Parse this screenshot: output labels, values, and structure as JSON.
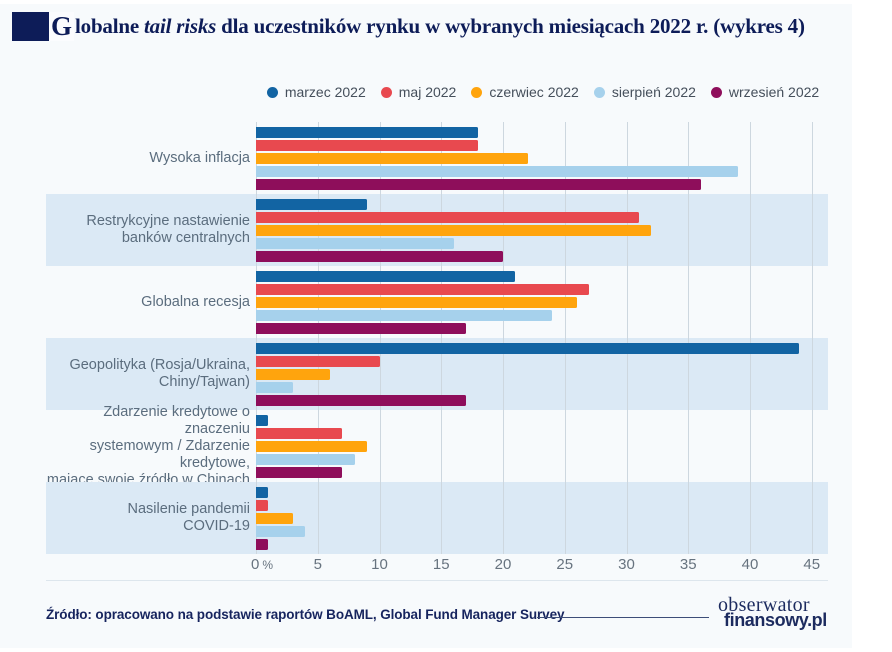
{
  "title": {
    "drop_cap": "G",
    "segment1": "lobalne ",
    "italic": "tail risks",
    "segment2": " dla uczestników rynku w wybranych miesiącach 2022 r. (wykres 4)"
  },
  "chart_data": {
    "type": "bar",
    "orientation": "horizontal",
    "title": "Globalne tail risks dla uczestników rynku w wybranych miesiącach 2022 r.",
    "xlabel": "%",
    "xlim": [
      0,
      46
    ],
    "ticks": [
      0,
      5,
      10,
      15,
      20,
      25,
      30,
      35,
      40,
      45
    ],
    "first_tick_suffix": "%",
    "grid": true,
    "legend_position": "top",
    "striped_row_indexes": [
      1,
      3,
      5
    ],
    "categories": [
      "Wysoka inflacja",
      "Restrykcyjne nastawienie\nbanków centralnych",
      "Globalna recesja",
      "Geopolityka (Rosja/Ukraina,\nChiny/Tajwan)",
      "Zdarzenie kredytowe o znaczeniu\nsystemowym / Zdarzenie kredytowe,\nmające swoje źródło w Chinach",
      "Nasilenie pandemii\nCOVID-19"
    ],
    "series": [
      {
        "name": "marzec 2022",
        "color": "#1264a3",
        "values": [
          18,
          9,
          21,
          44,
          1,
          1
        ]
      },
      {
        "name": "maj 2022",
        "color": "#e8494f",
        "values": [
          18,
          31,
          27,
          10,
          7,
          1
        ]
      },
      {
        "name": "czerwiec 2022",
        "color": "#ffa40d",
        "values": [
          22,
          32,
          26,
          6,
          9,
          3
        ]
      },
      {
        "name": "sierpień 2022",
        "color": "#a6d1ec",
        "values": [
          39,
          16,
          24,
          3,
          8,
          4
        ]
      },
      {
        "name": "wrzesień 2022",
        "color": "#8e0e5b",
        "values": [
          36,
          20,
          17,
          17,
          7,
          1
        ]
      }
    ]
  },
  "footer": {
    "source": "Źródło: opracowano na podstawie raportów BoAML, Global Fund Manager Survey",
    "logo_line1": "obserwator",
    "logo_line2": "finansowy.pl"
  },
  "colors": {
    "navy": "#0d1c58",
    "band": "#dbe9f5",
    "gridline": "#cdd7df",
    "category_label": "#5b6d7e",
    "tick_label": "#67737f",
    "card_background": "#f7fafc"
  }
}
